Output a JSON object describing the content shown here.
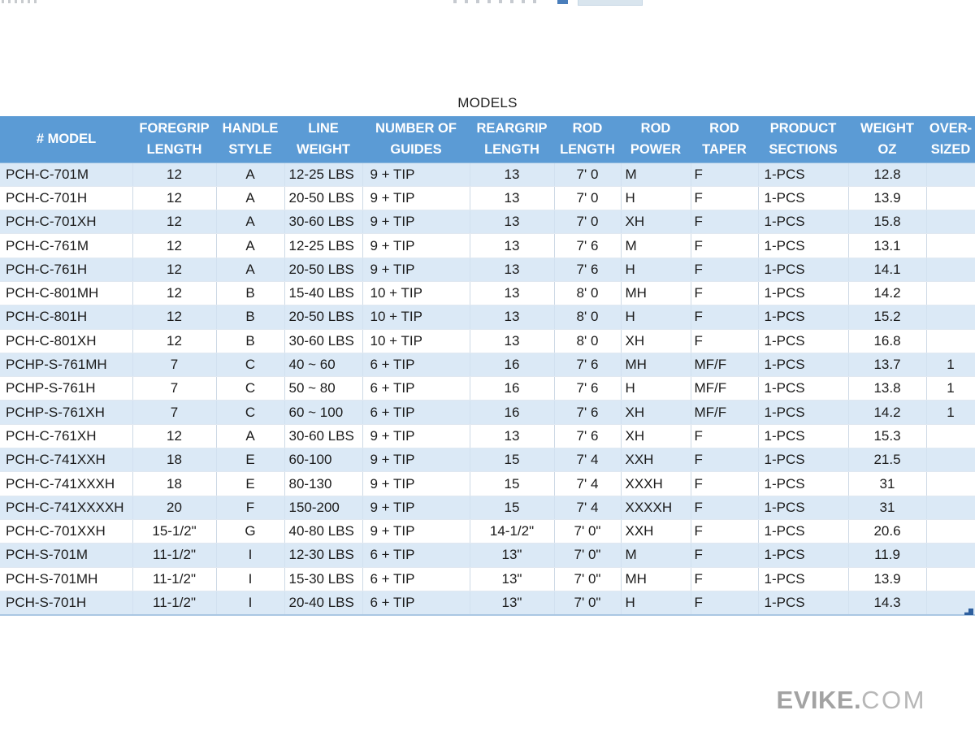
{
  "page": {
    "title": "MODELS",
    "watermark": {
      "bold": "EVIKE.",
      "light": "COM"
    }
  },
  "colors": {
    "header_blue": "#5b9bd5",
    "stripe_blue": "#dbe9f6",
    "grid_line": "#cdd9e5",
    "handle_blue": "#2e5f9e",
    "fragment_blue": "#4a7ebb",
    "fragment_light_bar": "#d9e5ee",
    "watermark_grey": "#a3a3a3"
  },
  "table": {
    "columns": [
      {
        "line1": "# MODEL",
        "line2": ""
      },
      {
        "line1": "FOREGRIP",
        "line2": "LENGTH"
      },
      {
        "line1": "HANDLE",
        "line2": "STYLE"
      },
      {
        "line1": "LINE",
        "line2": "WEIGHT"
      },
      {
        "line1": "NUMBER OF",
        "line2": "GUIDES"
      },
      {
        "line1": "REARGRIP",
        "line2": "LENGTH"
      },
      {
        "line1": "ROD",
        "line2": "LENGTH"
      },
      {
        "line1": "ROD",
        "line2": "POWER"
      },
      {
        "line1": "ROD",
        "line2": "TAPER"
      },
      {
        "line1": "PRODUCT",
        "line2": "SECTIONS"
      },
      {
        "line1": "WEIGHT",
        "line2": "OZ"
      },
      {
        "line1": "OVER-",
        "line2": "SIZED"
      }
    ],
    "rows": [
      [
        "PCH-C-701M",
        "12",
        "A",
        "12-25 LBS",
        "9 + TIP",
        "13",
        "7' 0",
        "M",
        "F",
        "1-PCS",
        "12.8",
        ""
      ],
      [
        "PCH-C-701H",
        "12",
        "A",
        "20-50 LBS",
        "9 + TIP",
        "13",
        "7' 0",
        "H",
        "F",
        "1-PCS",
        "13.9",
        ""
      ],
      [
        "PCH-C-701XH",
        "12",
        "A",
        "30-60 LBS",
        "9 + TIP",
        "13",
        "7' 0",
        "XH",
        "F",
        "1-PCS",
        "15.8",
        ""
      ],
      [
        "PCH-C-761M",
        "12",
        "A",
        "12-25 LBS",
        "9 + TIP",
        "13",
        "7' 6",
        "M",
        "F",
        "1-PCS",
        "13.1",
        ""
      ],
      [
        "PCH-C-761H",
        "12",
        "A",
        "20-50 LBS",
        "9 + TIP",
        "13",
        "7' 6",
        "H",
        "F",
        "1-PCS",
        "14.1",
        ""
      ],
      [
        "PCH-C-801MH",
        "12",
        "B",
        "15-40 LBS",
        "10 + TIP",
        "13",
        "8' 0",
        "MH",
        "F",
        "1-PCS",
        "14.2",
        ""
      ],
      [
        "PCH-C-801H",
        "12",
        "B",
        "20-50 LBS",
        "10 + TIP",
        "13",
        "8' 0",
        "H",
        "F",
        "1-PCS",
        "15.2",
        ""
      ],
      [
        "PCH-C-801XH",
        "12",
        "B",
        "30-60 LBS",
        "10 + TIP",
        "13",
        "8' 0",
        "XH",
        "F",
        "1-PCS",
        "16.8",
        ""
      ],
      [
        "PCHP-S-761MH",
        "7",
        "C",
        "40 ~ 60",
        "6 + TIP",
        "16",
        "7' 6",
        "MH",
        "MF/F",
        "1-PCS",
        "13.7",
        "1"
      ],
      [
        "PCHP-S-761H",
        "7",
        "C",
        "50 ~ 80",
        "6 + TIP",
        "16",
        "7' 6",
        "H",
        "MF/F",
        "1-PCS",
        "13.8",
        "1"
      ],
      [
        "PCHP-S-761XH",
        "7",
        "C",
        "60 ~ 100",
        "6 + TIP",
        "16",
        "7' 6",
        "XH",
        "MF/F",
        "1-PCS",
        "14.2",
        "1"
      ],
      [
        "PCH-C-761XH",
        "12",
        "A",
        "30-60 LBS",
        "9 + TIP",
        "13",
        "7' 6",
        "XH",
        "F",
        "1-PCS",
        "15.3",
        ""
      ],
      [
        "PCH-C-741XXH",
        "18",
        "E",
        "60-100",
        "9 + TIP",
        "15",
        "7' 4",
        "XXH",
        "F",
        "1-PCS",
        "21.5",
        ""
      ],
      [
        "PCH-C-741XXXH",
        "18",
        "E",
        "80-130",
        "9 + TIP",
        "15",
        "7' 4",
        "XXXH",
        "F",
        "1-PCS",
        "31",
        ""
      ],
      [
        "PCH-C-741XXXXH",
        "20",
        "F",
        "150-200",
        "9 + TIP",
        "15",
        "7' 4",
        "XXXXH",
        "F",
        "1-PCS",
        "31",
        ""
      ],
      [
        "PCH-C-701XXH",
        "15-1/2\"",
        "G",
        "40-80 LBS",
        "9 + TIP",
        "14-1/2\"",
        "7' 0\"",
        "XXH",
        "F",
        "1-PCS",
        "20.6",
        ""
      ],
      [
        "PCH-S-701M",
        "11-1/2\"",
        "I",
        "12-30 LBS",
        "6 + TIP",
        "13\"",
        "7' 0\"",
        "M",
        "F",
        "1-PCS",
        "11.9",
        ""
      ],
      [
        "PCH-S-701MH",
        "11-1/2\"",
        "I",
        "15-30 LBS",
        "6 + TIP",
        "13\"",
        "7' 0\"",
        "MH",
        "F",
        "1-PCS",
        "13.9",
        ""
      ],
      [
        "PCH-S-701H",
        "11-1/2\"",
        "I",
        "20-40 LBS",
        "6 + TIP",
        "13\"",
        "7' 0\"",
        "H",
        "F",
        "1-PCS",
        "14.3",
        ""
      ]
    ]
  }
}
